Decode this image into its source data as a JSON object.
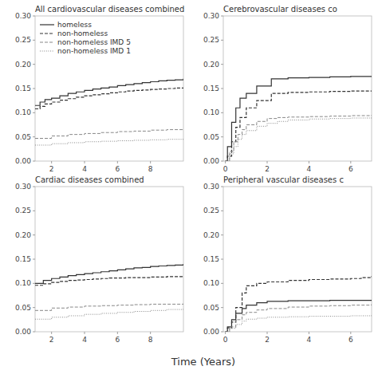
{
  "chart_data": [
    {
      "type": "step",
      "title": "All cardiovascular diseases combined",
      "legend": "upper left",
      "xlim": [
        1,
        10
      ],
      "xticks": [
        2,
        4,
        6,
        8
      ],
      "ylim": [
        0.0,
        0.3
      ],
      "yticks": [
        {
          "value": 0.0,
          "label": "0.00"
        },
        0.05,
        {
          "value": 0.1,
          "label": "0.10"
        },
        0.15,
        {
          "value": 0.2,
          "label": "0.20"
        },
        0.25,
        {
          "value": 0.3,
          "label": "0.30"
        }
      ],
      "series": [
        {
          "name": "homeless",
          "color": "#333333",
          "line_style": "solid",
          "x": [
            1,
            1.3,
            1.6,
            2,
            2.5,
            3,
            3.5,
            4,
            4.5,
            5,
            5.5,
            6,
            6.5,
            7,
            7.5,
            8,
            8.5,
            9,
            9.5,
            10
          ],
          "values": [
            0.115,
            0.122,
            0.127,
            0.13,
            0.135,
            0.14,
            0.143,
            0.146,
            0.149,
            0.151,
            0.153,
            0.156,
            0.158,
            0.16,
            0.162,
            0.164,
            0.166,
            0.167,
            0.168,
            0.17
          ]
        },
        {
          "name": "non-homeless",
          "color": "#333333",
          "line_style": "dashed",
          "x": [
            1,
            1.3,
            1.6,
            2,
            2.5,
            3,
            3.5,
            4,
            4.5,
            5,
            5.5,
            6,
            6.5,
            7,
            7.5,
            8,
            8.5,
            9,
            9.5,
            10
          ],
          "values": [
            0.108,
            0.113,
            0.118,
            0.122,
            0.126,
            0.129,
            0.132,
            0.135,
            0.137,
            0.139,
            0.141,
            0.143,
            0.145,
            0.146,
            0.147,
            0.148,
            0.149,
            0.15,
            0.151,
            0.152
          ]
        },
        {
          "name": "non-homeless IMD 5",
          "color": "#888888",
          "line_style": "dashed",
          "x": [
            1,
            2,
            3,
            4,
            5,
            6,
            7,
            8,
            9,
            10
          ],
          "values": [
            0.047,
            0.052,
            0.055,
            0.057,
            0.059,
            0.061,
            0.062,
            0.064,
            0.065,
            0.066
          ]
        },
        {
          "name": "non-homeless IMD 1",
          "color": "#888888",
          "line_style": "dotted",
          "x": [
            1,
            2,
            3,
            4,
            5,
            6,
            7,
            8,
            9,
            10
          ],
          "values": [
            0.033,
            0.036,
            0.038,
            0.04,
            0.041,
            0.042,
            0.043,
            0.044,
            0.045,
            0.046
          ]
        }
      ]
    },
    {
      "type": "step",
      "title": "Cerebrovascular diseases co",
      "xlim": [
        -0.1,
        7
      ],
      "xticks": [
        0,
        2,
        4,
        6
      ],
      "ylim": [
        0.0,
        0.3
      ],
      "yticks": [
        {
          "value": 0.0,
          "label": "0.00"
        },
        0.05,
        {
          "value": 0.1,
          "label": "0.10"
        },
        0.15,
        {
          "value": 0.2,
          "label": "0.20"
        },
        0.25,
        {
          "value": 0.3,
          "label": "0.30"
        }
      ],
      "series": [
        {
          "name": "homeless",
          "color": "#333333",
          "line_style": "solid",
          "x": [
            0,
            0.1,
            0.3,
            0.5,
            0.7,
            1.0,
            1.5,
            2.2,
            3,
            4,
            5,
            6,
            7
          ],
          "values": [
            0.0,
            0.03,
            0.08,
            0.11,
            0.13,
            0.14,
            0.155,
            0.17,
            0.172,
            0.173,
            0.174,
            0.175,
            0.175
          ]
        },
        {
          "name": "non-homeless",
          "color": "#333333",
          "line_style": "dashed",
          "x": [
            0,
            0.1,
            0.3,
            0.5,
            0.7,
            1.0,
            1.5,
            2.2,
            3,
            4,
            5,
            6,
            7
          ],
          "values": [
            0.0,
            0.01,
            0.04,
            0.07,
            0.09,
            0.11,
            0.125,
            0.14,
            0.142,
            0.143,
            0.144,
            0.145,
            0.145
          ]
        },
        {
          "name": "non-homeless IMD 5",
          "color": "#888888",
          "line_style": "dashed",
          "x": [
            0,
            0.2,
            0.4,
            0.6,
            0.8,
            1.0,
            1.5,
            2.0,
            2.5,
            3,
            4,
            5,
            6,
            7
          ],
          "values": [
            0.0,
            0.02,
            0.04,
            0.055,
            0.065,
            0.075,
            0.082,
            0.088,
            0.09,
            0.091,
            0.092,
            0.093,
            0.094,
            0.095
          ]
        },
        {
          "name": "non-homeless IMD 1",
          "color": "#888888",
          "line_style": "dotted",
          "x": [
            0,
            0.2,
            0.4,
            0.6,
            0.8,
            1.0,
            1.5,
            2.0,
            2.5,
            3,
            4,
            5,
            6,
            7
          ],
          "values": [
            0.0,
            0.015,
            0.03,
            0.045,
            0.055,
            0.063,
            0.072,
            0.078,
            0.082,
            0.085,
            0.087,
            0.088,
            0.089,
            0.09
          ]
        }
      ]
    },
    {
      "type": "step",
      "title": "Cardiac diseases combined",
      "xlabel": "Time (Years)",
      "xlim": [
        1,
        10
      ],
      "xticks": [
        2,
        4,
        6,
        8
      ],
      "ylim": [
        0.0,
        0.3
      ],
      "yticks": [
        {
          "value": 0.0,
          "label": "0.00"
        },
        0.05,
        {
          "value": 0.1,
          "label": "0.10"
        },
        0.15,
        {
          "value": 0.2,
          "label": "0.20"
        },
        0.25,
        {
          "value": 0.3,
          "label": "0.30"
        }
      ],
      "series": [
        {
          "name": "homeless",
          "color": "#333333",
          "line_style": "solid",
          "x": [
            1,
            1.5,
            2,
            2.5,
            3,
            3.5,
            4,
            4.5,
            5,
            5.5,
            6,
            6.5,
            7,
            7.5,
            8,
            8.5,
            9,
            9.5,
            10
          ],
          "values": [
            0.1,
            0.106,
            0.11,
            0.113,
            0.116,
            0.118,
            0.12,
            0.122,
            0.124,
            0.126,
            0.128,
            0.13,
            0.132,
            0.133,
            0.135,
            0.136,
            0.137,
            0.138,
            0.14
          ]
        },
        {
          "name": "non-homeless",
          "color": "#333333",
          "line_style": "dashed",
          "x": [
            1,
            1.5,
            2,
            2.5,
            3,
            3.5,
            4,
            4.5,
            5,
            5.5,
            6,
            6.5,
            7,
            7.5,
            8,
            8.5,
            9,
            9.5,
            10
          ],
          "values": [
            0.096,
            0.099,
            0.102,
            0.104,
            0.106,
            0.107,
            0.108,
            0.109,
            0.11,
            0.111,
            0.111,
            0.112,
            0.112,
            0.112,
            0.113,
            0.113,
            0.114,
            0.114,
            0.115
          ]
        },
        {
          "name": "non-homeless IMD 5",
          "color": "#888888",
          "line_style": "dashed",
          "x": [
            1,
            2,
            3,
            4,
            5,
            6,
            7,
            8,
            9,
            10
          ],
          "values": [
            0.044,
            0.049,
            0.051,
            0.053,
            0.054,
            0.055,
            0.056,
            0.057,
            0.057,
            0.058
          ]
        },
        {
          "name": "non-homeless IMD 1",
          "color": "#888888",
          "line_style": "dotted",
          "x": [
            1,
            2,
            3,
            4,
            5,
            6,
            7,
            8,
            9,
            10
          ],
          "values": [
            0.026,
            0.03,
            0.033,
            0.036,
            0.038,
            0.04,
            0.042,
            0.044,
            0.046,
            0.048
          ]
        }
      ]
    },
    {
      "type": "step",
      "title": "Peripheral vascular diseases c",
      "xlim": [
        -0.1,
        7
      ],
      "xticks": [
        0,
        2,
        4,
        6
      ],
      "ylim": [
        0.0,
        0.3
      ],
      "yticks": [
        {
          "value": 0.0,
          "label": "0.00"
        },
        0.05,
        {
          "value": 0.1,
          "label": "0.10"
        },
        0.15,
        {
          "value": 0.2,
          "label": "0.20"
        },
        0.25,
        {
          "value": 0.3,
          "label": "0.30"
        }
      ],
      "series": [
        {
          "name": "homeless",
          "color": "#333333",
          "line_style": "solid",
          "x": [
            0,
            0.1,
            0.3,
            0.5,
            0.8,
            1.0,
            1.5,
            2,
            3,
            4,
            5,
            6,
            7
          ],
          "values": [
            0.0,
            0.01,
            0.025,
            0.038,
            0.048,
            0.055,
            0.06,
            0.063,
            0.064,
            0.064,
            0.065,
            0.065,
            0.065
          ]
        },
        {
          "name": "non-homeless",
          "color": "#333333",
          "line_style": "dashed",
          "x": [
            0,
            0.1,
            0.3,
            0.5,
            0.8,
            1.0,
            1.5,
            2,
            3,
            4,
            5,
            6,
            6.5,
            7
          ],
          "values": [
            0.0,
            0.008,
            0.02,
            0.05,
            0.08,
            0.095,
            0.1,
            0.103,
            0.106,
            0.108,
            0.109,
            0.11,
            0.112,
            0.115
          ]
        },
        {
          "name": "non-homeless IMD 5",
          "color": "#888888",
          "line_style": "dashed",
          "x": [
            0,
            0.2,
            0.5,
            0.8,
            1.0,
            1.5,
            2,
            3,
            4,
            5,
            6,
            7
          ],
          "values": [
            0.0,
            0.01,
            0.025,
            0.035,
            0.04,
            0.045,
            0.048,
            0.051,
            0.053,
            0.054,
            0.055,
            0.057
          ]
        },
        {
          "name": "non-homeless IMD 1",
          "color": "#888888",
          "line_style": "dotted",
          "x": [
            0,
            0.2,
            0.5,
            0.8,
            1.0,
            1.5,
            2,
            3,
            4,
            5,
            6,
            7
          ],
          "values": [
            0.0,
            0.007,
            0.015,
            0.022,
            0.026,
            0.028,
            0.03,
            0.031,
            0.032,
            0.032,
            0.033,
            0.034
          ]
        }
      ]
    }
  ]
}
